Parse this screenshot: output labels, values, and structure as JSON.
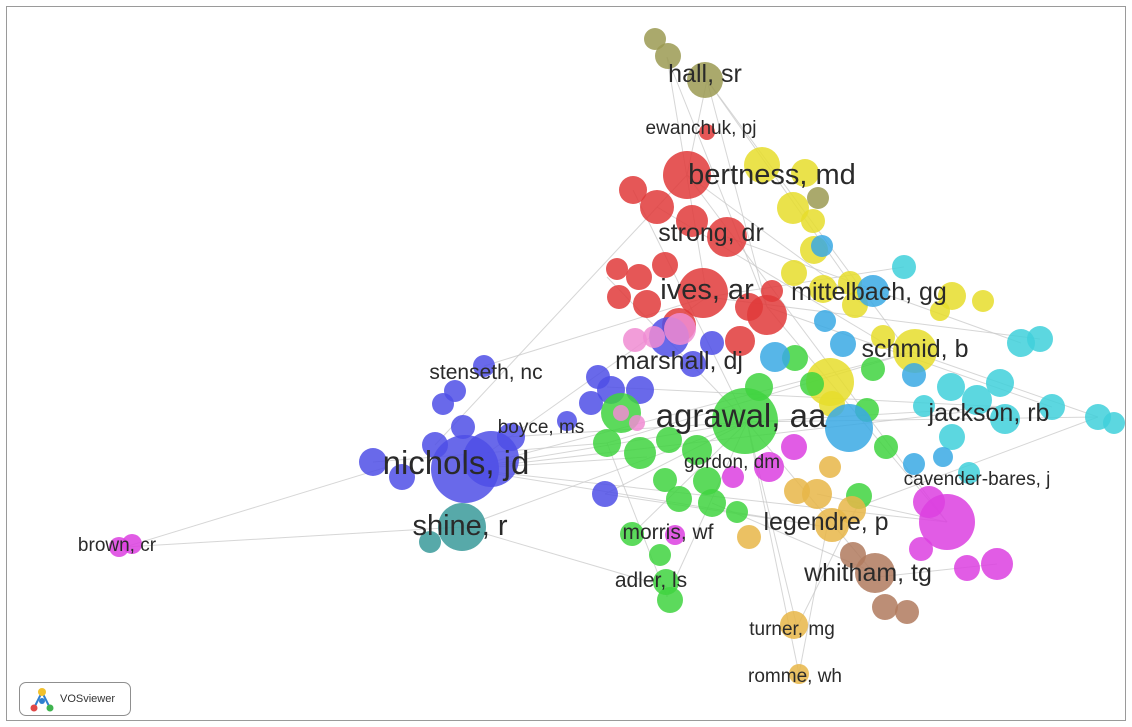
{
  "app": {
    "logo_label": "VOSviewer"
  },
  "colors": {
    "red": "#e03a3a",
    "yellow": "#e6dd2c",
    "olive": "#9b9a52",
    "blue": "#4f4fe6",
    "green": "#3fd43f",
    "cyan": "#3fd0db",
    "skyblue": "#3aa9e4",
    "magenta": "#dc3fe0",
    "orange": "#e7b648",
    "brown": "#b07a5e",
    "teal": "#3a9a9a",
    "pink": "#f08cd2",
    "line": "#c8c8c8"
  },
  "labels": [
    {
      "text": "hall, sr",
      "color": "olive",
      "size": "l"
    },
    {
      "text": "ewanchuk, pj",
      "color": "red",
      "size": "s"
    },
    {
      "text": "bertness, md",
      "color": "yellow",
      "size": "xl"
    },
    {
      "text": "strong, dr",
      "color": "red",
      "size": "l"
    },
    {
      "text": "ives, ar",
      "color": "red",
      "size": "xl"
    },
    {
      "text": "mittelbach, gg",
      "color": "yellow",
      "size": "l"
    },
    {
      "text": "schmid, b",
      "color": "yellow",
      "size": "l"
    },
    {
      "text": "marshall, dj",
      "color": "blue",
      "size": "l"
    },
    {
      "text": "stenseth, nc",
      "color": "blue",
      "size": "m"
    },
    {
      "text": "agrawal, aa",
      "color": "green",
      "size": "xxl"
    },
    {
      "text": "boyce, ms",
      "color": "blue",
      "size": "s"
    },
    {
      "text": "jackson, rb",
      "color": "cyan",
      "size": "l"
    },
    {
      "text": "gordon, dm",
      "color": "green",
      "size": "s"
    },
    {
      "text": "cavender-bares, j",
      "color": "cyan",
      "size": "s"
    },
    {
      "text": "nichols, jd",
      "color": "blue",
      "size": "xxl"
    },
    {
      "text": "shine, r",
      "color": "teal",
      "size": "xl"
    },
    {
      "text": "legendre, p",
      "color": "orange",
      "size": "l"
    },
    {
      "text": "morris, wf",
      "color": "green",
      "size": "m"
    },
    {
      "text": "brown, cr",
      "color": "magenta",
      "size": "s"
    },
    {
      "text": "whitham, tg",
      "color": "brown",
      "size": "l"
    },
    {
      "text": "adler, ls",
      "color": "green",
      "size": "m"
    },
    {
      "text": "turner, mg",
      "color": "orange",
      "size": "s"
    },
    {
      "text": "romme, wh",
      "color": "orange",
      "size": "s"
    }
  ]
}
